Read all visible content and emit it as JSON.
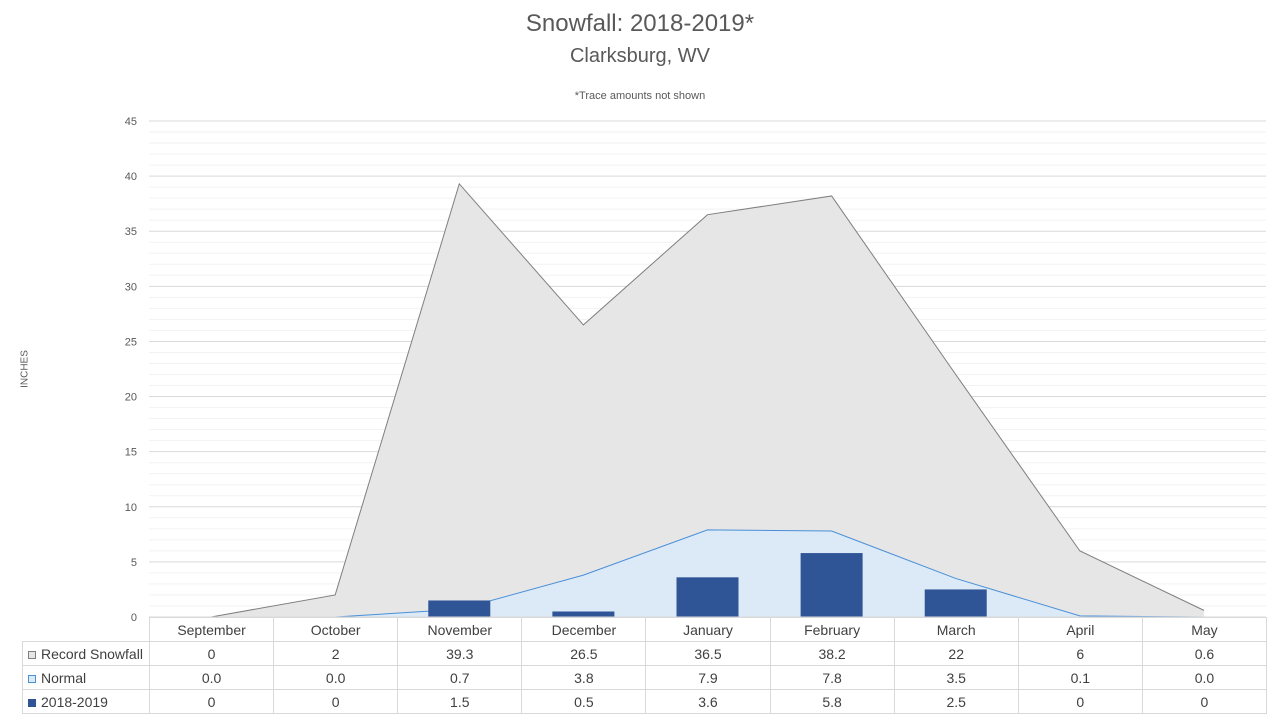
{
  "chart_data": {
    "type": "area",
    "title": "Snowfall: 2018-2019*",
    "subtitle": "Clarksburg, WV",
    "note": "*Trace amounts not shown",
    "ylabel": "INCHES",
    "ylim": [
      0,
      45
    ],
    "yticks": [
      "0",
      "5",
      "10",
      "15",
      "20",
      "25",
      "30",
      "35",
      "40",
      "45"
    ],
    "grid": true,
    "legend": "data-table",
    "categories": [
      "September",
      "October",
      "November",
      "December",
      "January",
      "February",
      "March",
      "April",
      "May"
    ],
    "series": [
      {
        "name": "Record Snowfall",
        "kind": "area",
        "color": "#e6e6e6",
        "stroke": "#7f7f7f",
        "values": [
          0,
          2,
          39.3,
          26.5,
          36.5,
          38.2,
          22,
          6,
          0.6
        ],
        "labels": [
          "0",
          "2",
          "39.3",
          "26.5",
          "36.5",
          "38.2",
          "22",
          "6",
          "0.6"
        ]
      },
      {
        "name": "Normal",
        "kind": "area",
        "color": "#dce9f6",
        "stroke": "#4a90d9",
        "values": [
          0.0,
          0.0,
          0.7,
          3.8,
          7.9,
          7.8,
          3.5,
          0.1,
          0.0
        ],
        "labels": [
          "0.0",
          "0.0",
          "0.7",
          "3.8",
          "7.9",
          "7.8",
          "3.5",
          "0.1",
          "0.0"
        ]
      },
      {
        "name": "2018-2019",
        "kind": "bar",
        "color": "#2f5597",
        "values": [
          0,
          0,
          1.5,
          0.5,
          3.6,
          5.8,
          2.5,
          0,
          0
        ],
        "labels": [
          "0",
          "0",
          "1.5",
          "0.5",
          "3.6",
          "5.8",
          "2.5",
          "0",
          "0"
        ]
      }
    ]
  }
}
